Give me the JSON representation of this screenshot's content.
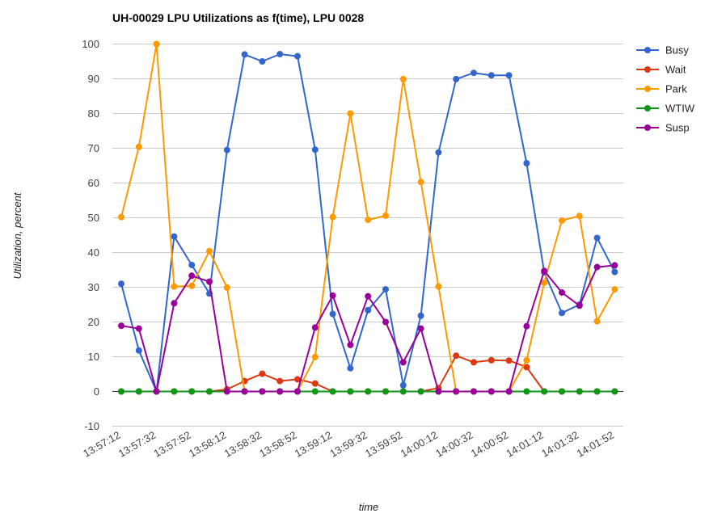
{
  "chart_data": {
    "type": "line",
    "title": "UH-00029 LPU Utilizations as f(time), LPU 0028",
    "xlabel": "time",
    "ylabel": "Utilization, percent",
    "ylim": [
      -10,
      100
    ],
    "yticks": [
      -10,
      0,
      10,
      20,
      30,
      40,
      50,
      60,
      70,
      80,
      90,
      100
    ],
    "grid": true,
    "legend_position": "right",
    "x": [
      "13:57:12",
      "13:57:22",
      "13:57:32",
      "13:57:42",
      "13:57:52",
      "13:58:02",
      "13:58:12",
      "13:58:22",
      "13:58:32",
      "13:58:42",
      "13:58:52",
      "13:59:02",
      "13:59:12",
      "13:59:22",
      "13:59:32",
      "13:59:42",
      "13:59:52",
      "14:00:02",
      "14:00:12",
      "14:00:22",
      "14:00:32",
      "14:00:42",
      "14:00:52",
      "14:01:02",
      "14:01:12",
      "14:01:22",
      "14:01:32",
      "14:01:42",
      "14:01:52"
    ],
    "xtick_labels": [
      "13:57:12",
      "13:57:32",
      "13:57:52",
      "13:58:12",
      "13:58:32",
      "13:58:52",
      "13:59:12",
      "13:59:32",
      "13:59:52",
      "14:00:12",
      "14:00:32",
      "14:00:52",
      "14:01:12",
      "14:01:32",
      "14:01:52"
    ],
    "series": [
      {
        "name": "Busy",
        "color": "#3366cc",
        "values": [
          31,
          11.8,
          0,
          44.6,
          36.4,
          28.2,
          69.5,
          97,
          95,
          97.1,
          96.5,
          69.6,
          22.3,
          6.7,
          23.4,
          29.4,
          1.8,
          21.8,
          68.8,
          89.9,
          91.7,
          91,
          91,
          65.7,
          34.3,
          22.6,
          25,
          44.2,
          34.4
        ]
      },
      {
        "name": "Wait",
        "color": "#dc3912",
        "values": [
          0,
          0,
          0,
          0,
          0,
          0,
          0.6,
          3,
          5.1,
          3,
          3.5,
          2.3,
          0,
          0,
          0,
          0,
          0,
          0,
          1,
          10.3,
          8.4,
          9,
          8.9,
          7,
          0,
          0,
          0,
          0,
          0
        ]
      },
      {
        "name": "Park",
        "color": "#ff9900",
        "values": [
          50.2,
          70.4,
          100,
          30.2,
          30.4,
          40.4,
          29.9,
          0,
          0,
          0,
          0,
          9.9,
          50.2,
          80,
          49.4,
          50.6,
          89.9,
          60.3,
          30.2,
          0,
          0,
          0,
          0,
          9,
          31.3,
          49.2,
          50.5,
          20.2,
          29.4
        ]
      },
      {
        "name": "WTIW",
        "color": "#109618",
        "values": [
          0,
          0,
          0,
          0,
          0,
          0,
          0,
          0,
          0,
          0,
          0,
          0,
          0,
          0,
          0,
          0,
          0,
          0,
          0,
          0,
          0,
          0,
          0,
          0,
          0,
          0,
          0,
          0,
          0
        ]
      },
      {
        "name": "Susp",
        "color": "#990099",
        "values": [
          18.9,
          18.1,
          0,
          25.4,
          33.3,
          31.6,
          0,
          0,
          0,
          0,
          0,
          18.4,
          27.6,
          13.4,
          27.4,
          20,
          8.4,
          18.1,
          0,
          0,
          0,
          0,
          0,
          18.8,
          34.7,
          28.5,
          24.7,
          35.8,
          36.3
        ]
      }
    ]
  }
}
